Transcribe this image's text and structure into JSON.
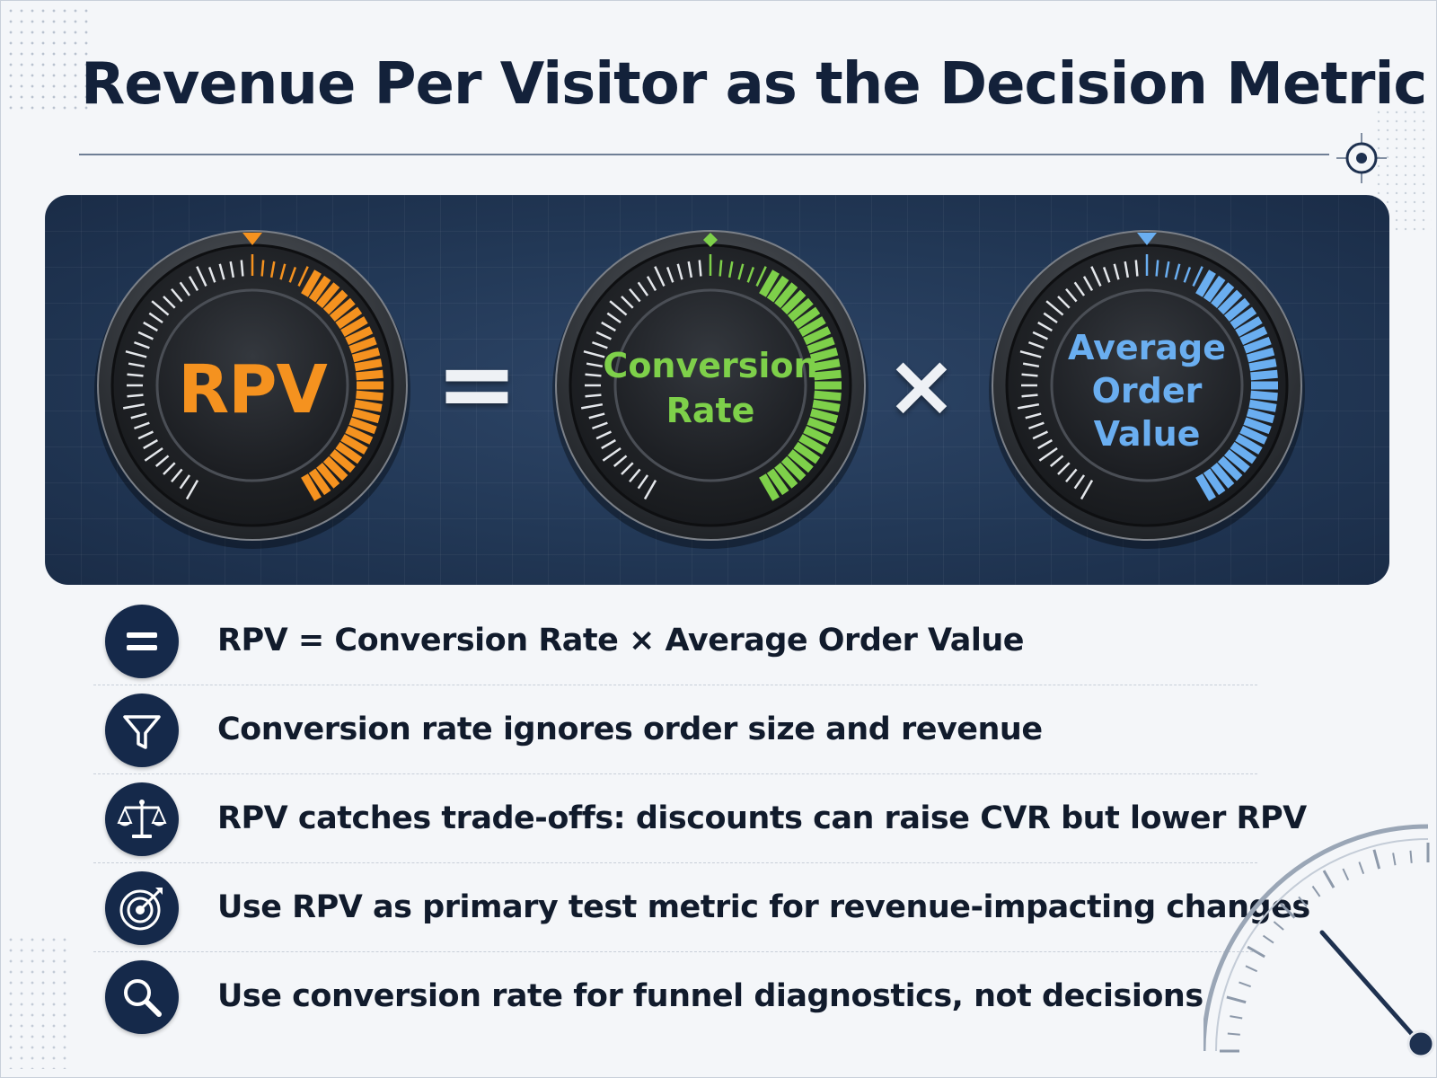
{
  "title": "Revenue Per Visitor as the Decision Metric",
  "equation": {
    "gauges": [
      {
        "id": "rpv",
        "label_lines": [
          "RPV"
        ],
        "color": "#f5921f",
        "level": 0.45
      },
      {
        "id": "cvr",
        "label_lines": [
          "Conversion",
          "Rate"
        ],
        "color": "#7ed04a",
        "level": 0.45
      },
      {
        "id": "aov",
        "label_lines": [
          "Average",
          "Order",
          "Value"
        ],
        "color": "#6aaef0",
        "level": 0.45
      }
    ],
    "operators": {
      "equals": "=",
      "times": "×"
    }
  },
  "points": [
    {
      "icon": "equals-icon",
      "text": "RPV = Conversion Rate × Average Order Value"
    },
    {
      "icon": "funnel-icon",
      "text": "Conversion rate ignores order size and revenue"
    },
    {
      "icon": "scales-icon",
      "text": "RPV catches trade-offs: discounts can raise CVR but lower RPV"
    },
    {
      "icon": "target-icon",
      "text": "Use RPV as primary test metric for revenue-impacting changes"
    },
    {
      "icon": "magnifier-icon",
      "text": "Use conversion rate for funnel diagnostics, not decisions"
    }
  ]
}
